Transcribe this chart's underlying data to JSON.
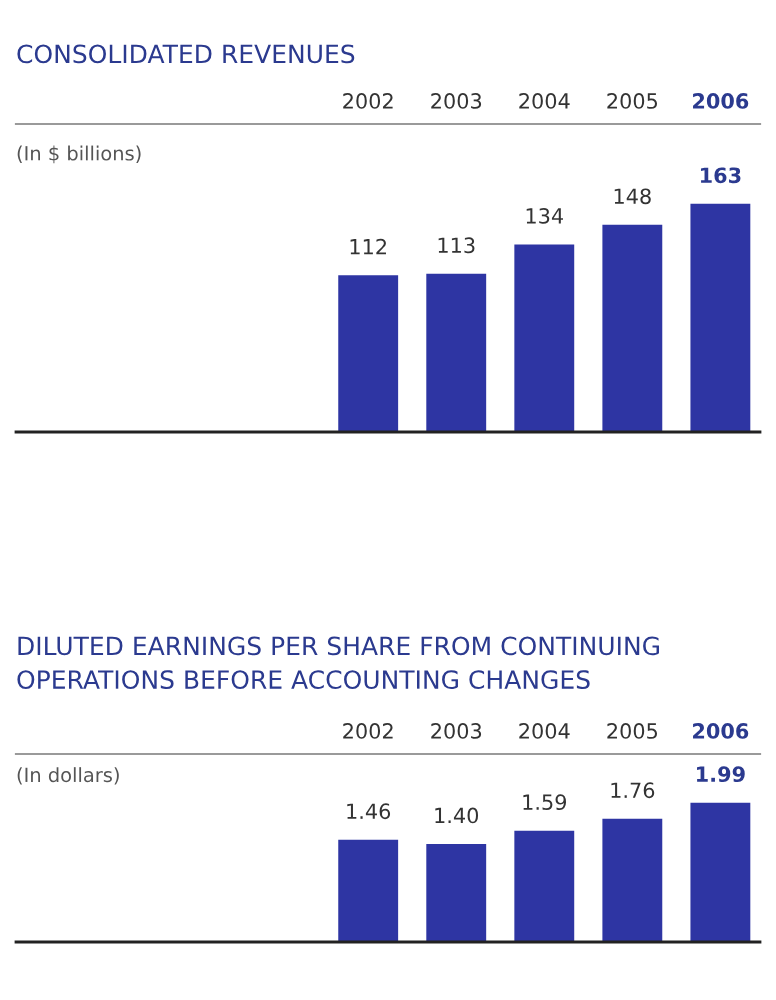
{
  "chart_data": [
    {
      "type": "bar",
      "title": "CONSOLIDATED REVENUES",
      "categories": [
        "2002",
        "2003",
        "2004",
        "2005",
        "2006"
      ],
      "values": [
        112,
        113,
        134,
        148,
        163
      ],
      "color": "#2e35a3",
      "data_labels": true,
      "annotations": [
        "(In $ billions)"
      ]
    },
    {
      "type": "bar",
      "title": "DILUTED EARNINGS PER SHARE FROM CONTINUING\nOPERATIONS BEFORE ACCOUNTING CHANGES",
      "categories": [
        "2002",
        "2003",
        "2004",
        "2005",
        "2006"
      ],
      "values": [
        1.46,
        1.4,
        1.59,
        1.76,
        1.99
      ],
      "value_labels": [
        "1.46",
        "1.40",
        "1.59",
        "1.76",
        "1.99"
      ],
      "color": "#2e35a3",
      "annotations": [
        "(In dollars)"
      ]
    }
  ]
}
